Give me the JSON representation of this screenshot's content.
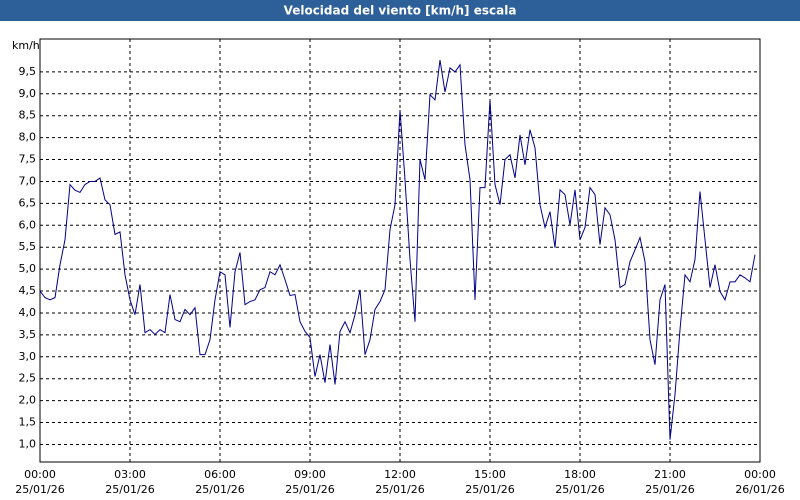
{
  "chart_data": {
    "type": "line",
    "title": "Velocidad del viento [km/h] escala",
    "y_label": "km/h",
    "x": [
      0,
      10,
      20,
      30,
      40,
      50,
      60,
      70,
      80,
      90,
      100,
      110,
      120,
      130,
      140,
      150,
      160,
      170,
      180,
      190,
      200,
      210,
      220,
      230,
      240,
      250,
      260,
      270,
      280,
      290,
      300,
      310,
      320,
      330,
      340,
      350,
      360,
      370,
      380,
      390,
      400,
      410,
      420,
      430,
      440,
      450,
      460,
      470,
      480,
      490,
      500,
      510,
      520,
      530,
      540,
      550,
      560,
      570,
      580,
      590,
      600,
      610,
      620,
      630,
      640,
      650,
      660,
      670,
      680,
      690,
      700,
      710,
      720,
      730,
      740,
      750,
      760,
      770,
      780,
      790,
      800,
      810,
      820,
      830,
      840,
      850,
      860,
      870,
      880,
      890,
      900,
      910,
      920,
      930,
      940,
      950,
      960,
      970,
      980,
      990,
      1000,
      1010,
      1020,
      1030,
      1040,
      1050,
      1060,
      1070,
      1080,
      1090,
      1100,
      1110,
      1120,
      1130,
      1140,
      1150,
      1160,
      1170,
      1180,
      1190,
      1200,
      1210,
      1220,
      1230,
      1240,
      1250,
      1260,
      1270,
      1280,
      1290,
      1300,
      1310,
      1320,
      1330,
      1340,
      1350,
      1360,
      1370,
      1380,
      1390,
      1400,
      1410,
      1420,
      1430
    ],
    "series": [
      {
        "name": "km/h",
        "color": "#00008b",
        "values": [
          4.5,
          4.35,
          4.3,
          4.35,
          5.1,
          5.67,
          6.93,
          6.8,
          6.75,
          6.93,
          7.0,
          7.0,
          7.08,
          6.58,
          6.47,
          5.79,
          5.85,
          4.87,
          4.3,
          3.96,
          4.65,
          3.55,
          3.62,
          3.51,
          3.62,
          3.55,
          4.42,
          3.85,
          3.8,
          4.08,
          3.96,
          4.12,
          3.05,
          3.05,
          3.39,
          4.3,
          4.94,
          4.87,
          3.67,
          4.94,
          5.38,
          4.19,
          4.26,
          4.3,
          4.53,
          4.58,
          4.94,
          4.87,
          5.1,
          4.76,
          4.4,
          4.42,
          3.8,
          3.58,
          3.44,
          2.55,
          3.05,
          2.41,
          3.28,
          2.37,
          3.58,
          3.8,
          3.55,
          3.96,
          4.53,
          3.05,
          3.39,
          4.08,
          4.26,
          4.53,
          5.9,
          6.47,
          8.63,
          7.04,
          5.22,
          3.8,
          7.5,
          7.04,
          8.98,
          8.86,
          9.77,
          9.04,
          9.59,
          9.5,
          9.66,
          7.84,
          7.04,
          4.3,
          6.86,
          6.86,
          8.86,
          6.93,
          6.47,
          7.5,
          7.61,
          7.08,
          8.06,
          7.38,
          8.18,
          7.77,
          6.47,
          5.95,
          6.31,
          5.49,
          6.81,
          6.7,
          6.01,
          6.81,
          5.67,
          5.95,
          6.86,
          6.7,
          5.56,
          6.4,
          6.24,
          5.67,
          4.58,
          4.65,
          5.17,
          5.44,
          5.72,
          5.17,
          3.39,
          2.82,
          4.3,
          4.65,
          1.11,
          2.14,
          3.62,
          4.87,
          4.71,
          5.22,
          6.77,
          5.67,
          4.58,
          5.1,
          4.49,
          4.3,
          4.71,
          4.71,
          4.87,
          4.8,
          4.71,
          5.33
        ]
      }
    ],
    "xlim": [
      0,
      1440
    ],
    "xticks": [
      {
        "value": 0,
        "label": "00:00"
      },
      {
        "value": 180,
        "label": "03:00"
      },
      {
        "value": 360,
        "label": "06:00"
      },
      {
        "value": 540,
        "label": "09:00"
      },
      {
        "value": 720,
        "label": "12:00"
      },
      {
        "value": 900,
        "label": "15:00"
      },
      {
        "value": 1080,
        "label": "18:00"
      },
      {
        "value": 1260,
        "label": "21:00"
      },
      {
        "value": 1440,
        "label": "00:00"
      }
    ],
    "xtick_dates": [
      "25/01/26",
      "25/01/26",
      "25/01/26",
      "25/01/26",
      "25/01/26",
      "25/01/26",
      "25/01/26",
      "25/01/26",
      "26/01/26"
    ],
    "ylim": [
      0.6,
      10.25
    ],
    "yticks": [
      {
        "value": 1.0,
        "label": "1,0"
      },
      {
        "value": 1.5,
        "label": "1,5"
      },
      {
        "value": 2.0,
        "label": "2,0"
      },
      {
        "value": 2.5,
        "label": "2,5"
      },
      {
        "value": 3.0,
        "label": "3,0"
      },
      {
        "value": 3.5,
        "label": "3,5"
      },
      {
        "value": 4.0,
        "label": "4,0"
      },
      {
        "value": 4.5,
        "label": "4,5"
      },
      {
        "value": 5.0,
        "label": "5,0"
      },
      {
        "value": 5.5,
        "label": "5,5"
      },
      {
        "value": 6.0,
        "label": "6,0"
      },
      {
        "value": 6.5,
        "label": "6,5"
      },
      {
        "value": 7.0,
        "label": "7,0"
      },
      {
        "value": 7.5,
        "label": "7,5"
      },
      {
        "value": 8.0,
        "label": "8,0"
      },
      {
        "value": 8.5,
        "label": "8,5"
      },
      {
        "value": 9.0,
        "label": "9,0"
      },
      {
        "value": 9.5,
        "label": "9,5"
      }
    ],
    "grid": true
  }
}
